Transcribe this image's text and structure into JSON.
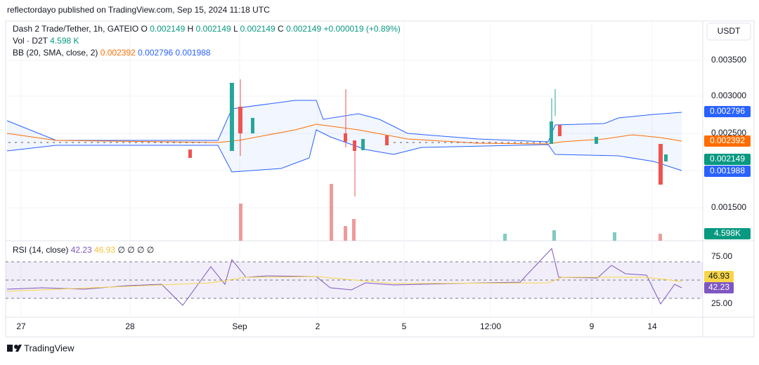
{
  "header": {
    "published": "reflectordayo published on TradingView.com, Sep 15, 2024 11:18 UTC"
  },
  "legend": {
    "symbol": "Dash 2 Trade/Tether, 1h, GATEIO",
    "ohlc": [
      {
        "label": "O",
        "value": "0.002149"
      },
      {
        "label": "H",
        "value": "0.002149"
      },
      {
        "label": "L",
        "value": "0.002149"
      },
      {
        "label": "C",
        "value": "0.002149"
      }
    ],
    "change": "+0.000019 (+0.89%)",
    "volume": {
      "label": "Vol · D2T",
      "value": "4.598 K"
    },
    "bb": {
      "label": "BB (20, SMA, close, 2)",
      "values": [
        "0.002392",
        "0.002796",
        "0.001988"
      ]
    }
  },
  "currency": "USDT",
  "price_axis": [
    "0.003500",
    "0.003000",
    "0.002500",
    "0.001500"
  ],
  "price_badges": [
    "0.002796",
    "0.002392",
    "0.002149",
    "0.001988",
    "4.598K"
  ],
  "rsi": {
    "label": "RSI (14, close)",
    "values": [
      "42.23",
      "46.93",
      "∅",
      "∅",
      "∅",
      "∅"
    ],
    "axis": [
      "75.00",
      "25.00"
    ],
    "badges": [
      "46.93",
      "42.23"
    ]
  },
  "time_axis": [
    "27",
    "28",
    "Sep",
    "2",
    "5",
    "12:00",
    "9",
    "14"
  ],
  "footer": "TradingView"
}
